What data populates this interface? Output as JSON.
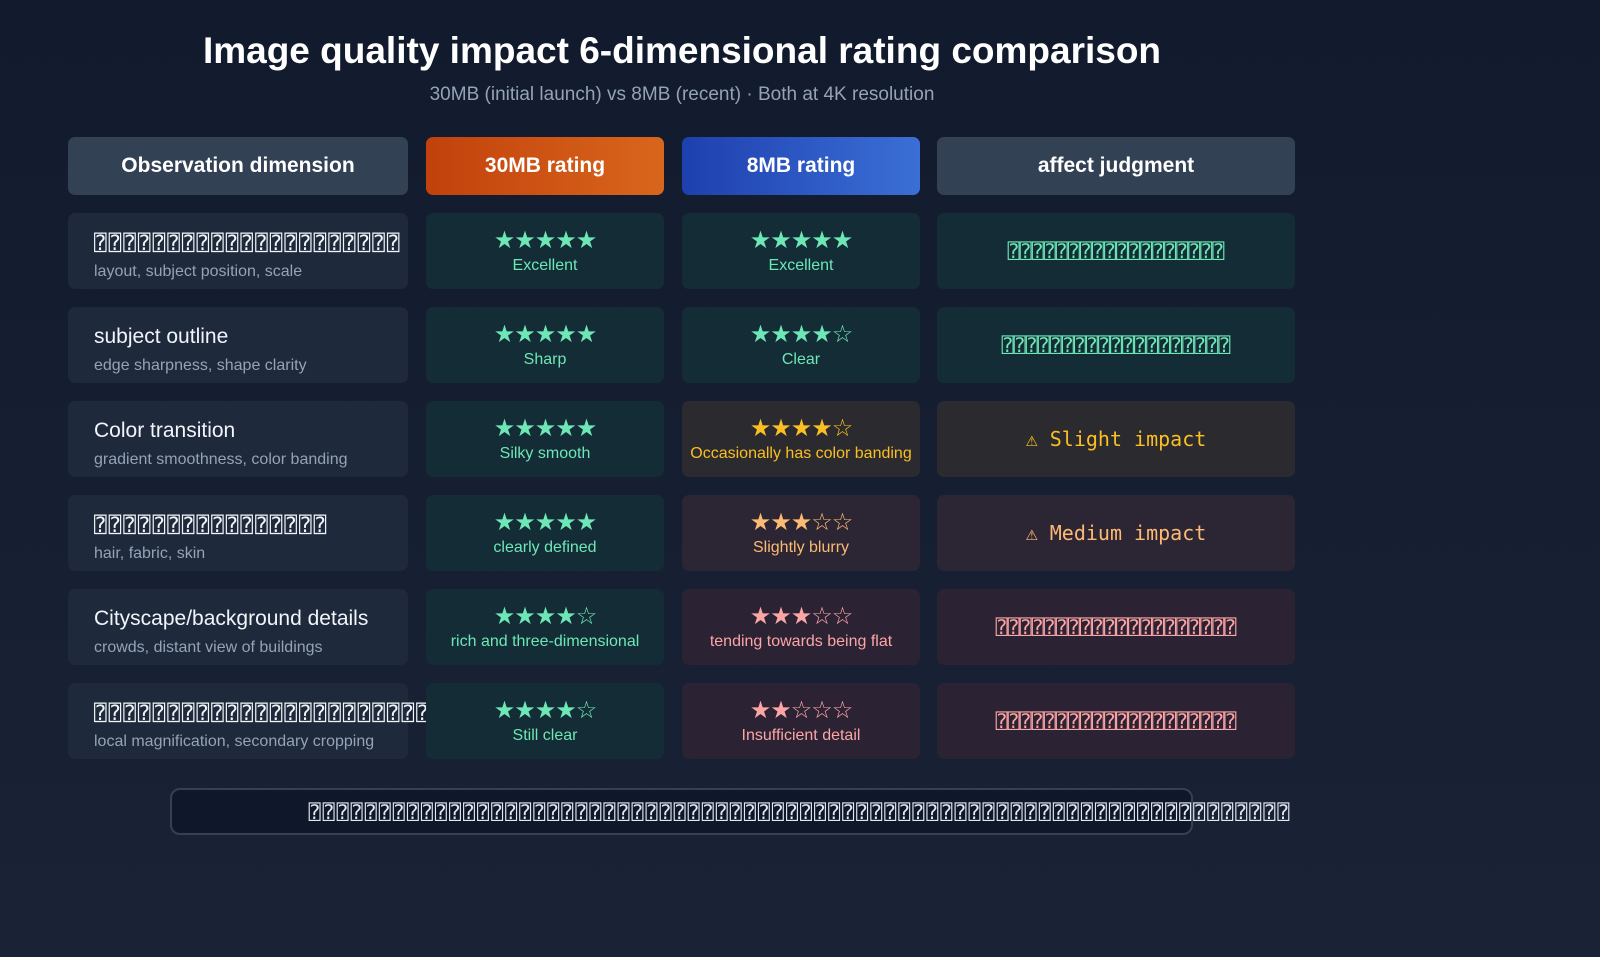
{
  "header": {
    "title": "Image quality impact 6-dimensional rating comparison",
    "subtitle": "30MB (initial launch) vs 8MB (recent) · Both at 4K resolution"
  },
  "columns": [
    "Observation dimension",
    "30MB rating",
    "8MB rating",
    "affect judgment"
  ],
  "colors": {
    "green": "#6ee7b7",
    "amber": "#fbbf24",
    "orange": "#fdba74",
    "red": "#fca5a5",
    "col_30mb": "#c2410c",
    "col_8mb": "#1e40af"
  },
  "rows": [
    {
      "name": "⍰⍰⍰⍰⍰⍰⍰⍰⍰⍰⍰⍰⍰⍰⍰⍰⍰⍰⍰⍰⍰",
      "desc": "layout, subject position, scale",
      "r30": {
        "stars": "★★★★★",
        "rating": 5,
        "label": "Excellent"
      },
      "r8": {
        "stars": "★★★★★",
        "rating": 5,
        "label": "Excellent"
      },
      "judgment": "⍰⍰⍰⍰⍰⍰⍰⍰⍰⍰⍰⍰⍰⍰⍰⍰⍰⍰"
    },
    {
      "name": "subject outline",
      "desc": "edge sharpness, shape clarity",
      "r30": {
        "stars": "★★★★★",
        "rating": 5,
        "label": "Sharp"
      },
      "r8": {
        "stars": "★★★★☆",
        "rating": 4,
        "label": "Clear"
      },
      "judgment": "⍰⍰⍰⍰⍰⍰⍰⍰⍰⍰⍰⍰⍰⍰⍰⍰⍰⍰⍰"
    },
    {
      "name": "Color transition",
      "desc": "gradient smoothness, color banding",
      "r30": {
        "stars": "★★★★★",
        "rating": 5,
        "label": "Silky smooth"
      },
      "r8": {
        "stars": "★★★★☆",
        "rating": 4,
        "label": "Occasionally has color banding"
      },
      "judgment": "⚠ Slight impact"
    },
    {
      "name": "⍰⍰⍰⍰⍰⍰⍰⍰⍰⍰⍰⍰⍰⍰⍰⍰",
      "desc": "hair, fabric, skin",
      "r30": {
        "stars": "★★★★★",
        "rating": 5,
        "label": "clearly defined"
      },
      "r8": {
        "stars": "★★★☆☆",
        "rating": 3,
        "label": "Slightly blurry"
      },
      "judgment": "⚠ Medium impact"
    },
    {
      "name": "Cityscape/background details",
      "desc": "crowds, distant view of buildings",
      "r30": {
        "stars": "★★★★☆",
        "rating": 4,
        "label": "rich and three-dimensional"
      },
      "r8": {
        "stars": "★★★☆☆",
        "rating": 3,
        "label": "tending towards being flat"
      },
      "judgment": "⍰⍰⍰⍰⍰⍰⍰⍰⍰⍰⍰⍰⍰⍰⍰⍰⍰⍰⍰⍰"
    },
    {
      "name": "⍰⍰⍰⍰⍰⍰⍰⍰⍰⍰⍰⍰⍰⍰⍰⍰⍰⍰⍰⍰⍰⍰⍰⍰⍰⍰⍰⍰",
      "desc": "local magnification, secondary cropping",
      "r30": {
        "stars": "★★★★☆",
        "rating": 4,
        "label": "Still clear"
      },
      "r8": {
        "stars": "★★☆☆☆",
        "rating": 2,
        "label": "Insufficient detail"
      },
      "judgment": "⍰⍰⍰⍰⍰⍰⍰⍰⍰⍰⍰⍰⍰⍰⍰⍰⍰⍰⍰⍰"
    }
  ],
  "footer": "⍰⍰⍰⍰⍰⍰⍰⍰⍰⍰⍰⍰⍰⍰⍰⍰⍰⍰⍰⍰⍰⍰⍰⍰⍰⍰⍰⍰⍰⍰⍰⍰⍰⍰⍰⍰⍰⍰⍰⍰⍰⍰⍰⍰⍰⍰⍰⍰⍰⍰⍰⍰⍰⍰⍰⍰⍰⍰⍰⍰⍰⍰⍰⍰⍰⍰⍰⍰⍰⍰"
}
